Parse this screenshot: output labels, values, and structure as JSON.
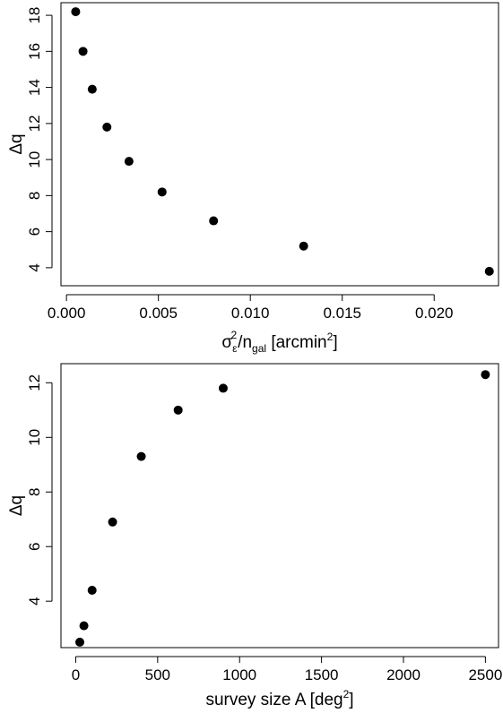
{
  "chart_data": [
    {
      "type": "scatter",
      "xlabel": "σε2/ngal [arcmin2]",
      "ylabel": "Δq",
      "xlim": [
        -0.0003,
        0.0235
      ],
      "ylim": [
        3.0,
        18.7
      ],
      "xticks": [
        0.0,
        0.005,
        0.01,
        0.015,
        0.02
      ],
      "xtick_labels": [
        "0.000",
        "0.005",
        "0.010",
        "0.015",
        "0.020"
      ],
      "yticks": [
        4,
        6,
        8,
        10,
        12,
        14,
        16,
        18
      ],
      "ytick_labels": [
        "4",
        "6",
        "8",
        "10",
        "12",
        "14",
        "16",
        "18"
      ],
      "x": [
        0.0005,
        0.0009,
        0.0014,
        0.0022,
        0.0034,
        0.0052,
        0.008,
        0.0129,
        0.023
      ],
      "y": [
        18.2,
        16.0,
        13.9,
        11.8,
        9.9,
        8.2,
        6.6,
        5.2,
        3.8
      ]
    },
    {
      "type": "scatter",
      "xlabel": "survey size A [deg2]",
      "ylabel": "Δq",
      "xlim": [
        -90,
        2580
      ],
      "ylim": [
        2.3,
        12.7
      ],
      "xticks": [
        0,
        500,
        1000,
        1500,
        2000,
        2500
      ],
      "xtick_labels": [
        "0",
        "500",
        "1000",
        "1500",
        "2000",
        "2500"
      ],
      "yticks": [
        4,
        6,
        8,
        10,
        12
      ],
      "ytick_labels": [
        "4",
        "6",
        "8",
        "10",
        "12"
      ],
      "x": [
        25,
        50,
        100,
        225,
        400,
        625,
        900,
        2500
      ],
      "y": [
        2.5,
        3.1,
        4.4,
        6.9,
        9.3,
        11.0,
        11.8,
        12.3
      ]
    }
  ]
}
